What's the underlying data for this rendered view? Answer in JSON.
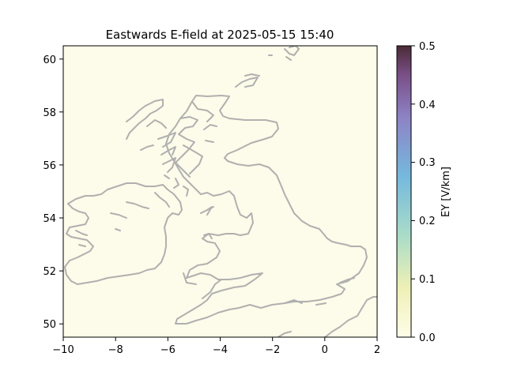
{
  "title": "Eastwards E-field at 2025-05-15 15:40",
  "map": {
    "lon_range": [
      -10,
      2
    ],
    "lat_range": [
      49.5,
      60.5
    ],
    "x_ticks": [
      "−10",
      "−8",
      "−6",
      "−4",
      "−2",
      "0",
      "2"
    ],
    "x_tick_values": [
      -10,
      -8,
      -6,
      -4,
      -2,
      0,
      2
    ],
    "y_ticks": [
      "50",
      "52",
      "54",
      "56",
      "58",
      "60"
    ],
    "y_tick_values": [
      50,
      52,
      54,
      56,
      58,
      60
    ],
    "field_color": "#fdfbe9",
    "coastline_color": "#b0b0b0"
  },
  "colorbar": {
    "label": "EY [V/km]",
    "range": [
      0.0,
      0.5
    ],
    "ticks": [
      "0.0",
      "0.1",
      "0.2",
      "0.3",
      "0.4",
      "0.5"
    ],
    "tick_values": [
      0.0,
      0.1,
      0.2,
      0.3,
      0.4,
      0.5
    ],
    "colors": [
      "#fffde8",
      "#eef0b6",
      "#a9dcc8",
      "#75b9de",
      "#8d84c6",
      "#7a4f87",
      "#4a2a36"
    ]
  }
}
